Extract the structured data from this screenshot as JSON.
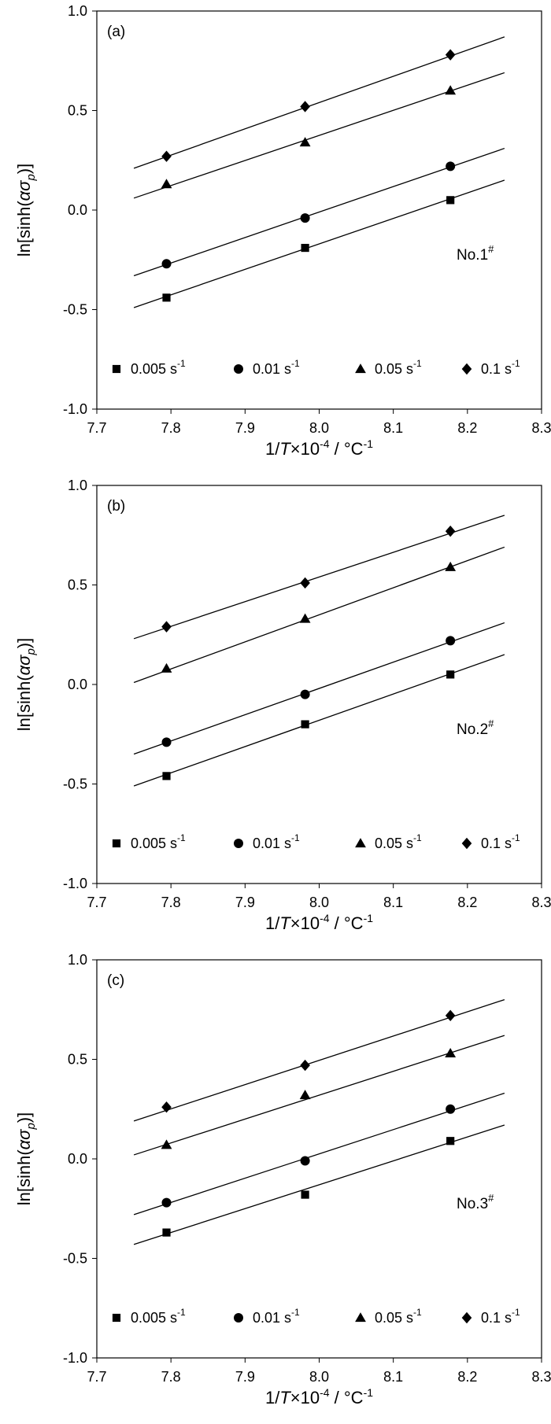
{
  "chart_data": [
    {
      "type": "scatter",
      "panel_label": "(a)",
      "annotation": {
        "base": "No.1",
        "sup": "#"
      },
      "xlabel": {
        "prefix": "1/",
        "italic": "T",
        "mid": "×10",
        "exp": "-4",
        "unit": " / °C",
        "unit_exp": "-1"
      },
      "ylabel": {
        "prefix": "ln[sinh(",
        "alpha": "α",
        "sigma": "σ",
        "sub": "p",
        "suffix": ")]"
      },
      "xlim": [
        7.7,
        8.3
      ],
      "ylim": [
        -1.0,
        1.0
      ],
      "x_ticks": [
        "7.7",
        "7.8",
        "7.9",
        "8.0",
        "8.1",
        "8.2",
        "8.3"
      ],
      "y_ticks": [
        "-1.0",
        "-0.5",
        "0.0",
        "0.5",
        "1.0"
      ],
      "grid": false,
      "legend_position": "bottom",
      "series": [
        {
          "name": "0.005 s",
          "name_exp": "-1",
          "marker": "square",
          "x": [
            7.794,
            7.981,
            8.177
          ],
          "y": [
            -0.44,
            -0.19,
            0.05
          ],
          "fit": {
            "x": [
              7.75,
              8.25
            ],
            "y": [
              -0.49,
              0.15
            ]
          }
        },
        {
          "name": "0.01 s",
          "name_exp": "-1",
          "marker": "circle",
          "x": [
            7.794,
            7.981,
            8.177
          ],
          "y": [
            -0.27,
            -0.04,
            0.22
          ],
          "fit": {
            "x": [
              7.75,
              8.25
            ],
            "y": [
              -0.33,
              0.31
            ]
          }
        },
        {
          "name": "0.05 s",
          "name_exp": "-1",
          "marker": "triangle",
          "x": [
            7.794,
            7.981,
            8.177
          ],
          "y": [
            0.13,
            0.34,
            0.6
          ],
          "fit": {
            "x": [
              7.75,
              8.25
            ],
            "y": [
              0.06,
              0.69
            ]
          }
        },
        {
          "name": "0.1 s",
          "name_exp": "-1",
          "marker": "diamond",
          "x": [
            7.794,
            7.981,
            8.177
          ],
          "y": [
            0.27,
            0.52,
            0.78
          ],
          "fit": {
            "x": [
              7.75,
              8.25
            ],
            "y": [
              0.21,
              0.87
            ]
          }
        }
      ]
    },
    {
      "type": "scatter",
      "panel_label": "(b)",
      "annotation": {
        "base": "No.2",
        "sup": "#"
      },
      "xlabel": {
        "prefix": "1/",
        "italic": "T",
        "mid": "×10",
        "exp": "-4",
        "unit": " / °C",
        "unit_exp": "-1"
      },
      "ylabel": {
        "prefix": "ln[sinh(",
        "alpha": "α",
        "sigma": "σ",
        "sub": "p",
        "suffix": ")]"
      },
      "xlim": [
        7.7,
        8.3
      ],
      "ylim": [
        -1.0,
        1.0
      ],
      "x_ticks": [
        "7.7",
        "7.8",
        "7.9",
        "8.0",
        "8.1",
        "8.2",
        "8.3"
      ],
      "y_ticks": [
        "-1.0",
        "-0.5",
        "0.0",
        "0.5",
        "1.0"
      ],
      "grid": false,
      "legend_position": "bottom",
      "series": [
        {
          "name": "0.005 s",
          "name_exp": "-1",
          "marker": "square",
          "x": [
            7.794,
            7.981,
            8.177
          ],
          "y": [
            -0.46,
            -0.2,
            0.05
          ],
          "fit": {
            "x": [
              7.75,
              8.25
            ],
            "y": [
              -0.51,
              0.15
            ]
          }
        },
        {
          "name": "0.01 s",
          "name_exp": "-1",
          "marker": "circle",
          "x": [
            7.794,
            7.981,
            8.177
          ],
          "y": [
            -0.29,
            -0.05,
            0.22
          ],
          "fit": {
            "x": [
              7.75,
              8.25
            ],
            "y": [
              -0.35,
              0.31
            ]
          }
        },
        {
          "name": "0.05 s",
          "name_exp": "-1",
          "marker": "triangle",
          "x": [
            7.794,
            7.981,
            8.177
          ],
          "y": [
            0.08,
            0.33,
            0.59
          ],
          "fit": {
            "x": [
              7.75,
              8.25
            ],
            "y": [
              0.01,
              0.69
            ]
          }
        },
        {
          "name": "0.1 s",
          "name_exp": "-1",
          "marker": "diamond",
          "x": [
            7.794,
            7.981,
            8.177
          ],
          "y": [
            0.29,
            0.51,
            0.77
          ],
          "fit": {
            "x": [
              7.75,
              8.25
            ],
            "y": [
              0.23,
              0.85
            ]
          }
        }
      ]
    },
    {
      "type": "scatter",
      "panel_label": "(c)",
      "annotation": {
        "base": "No.3",
        "sup": "#"
      },
      "xlabel": {
        "prefix": "1/",
        "italic": "T",
        "mid": "×10",
        "exp": "-4",
        "unit": " / °C",
        "unit_exp": "-1"
      },
      "ylabel": {
        "prefix": "ln[sinh(",
        "alpha": "α",
        "sigma": "σ",
        "sub": "p",
        "suffix": ")]"
      },
      "xlim": [
        7.7,
        8.3
      ],
      "ylim": [
        -1.0,
        1.0
      ],
      "x_ticks": [
        "7.7",
        "7.8",
        "7.9",
        "8.0",
        "8.1",
        "8.2",
        "8.3"
      ],
      "y_ticks": [
        "-1.0",
        "-0.5",
        "0.0",
        "0.5",
        "1.0"
      ],
      "grid": false,
      "legend_position": "bottom",
      "series": [
        {
          "name": "0.005 s",
          "name_exp": "-1",
          "marker": "square",
          "x": [
            7.794,
            7.981,
            8.177
          ],
          "y": [
            -0.37,
            -0.18,
            0.09
          ],
          "fit": {
            "x": [
              7.75,
              8.25
            ],
            "y": [
              -0.43,
              0.17
            ]
          }
        },
        {
          "name": "0.01 s",
          "name_exp": "-1",
          "marker": "circle",
          "x": [
            7.794,
            7.981,
            8.177
          ],
          "y": [
            -0.22,
            -0.01,
            0.25
          ],
          "fit": {
            "x": [
              7.75,
              8.25
            ],
            "y": [
              -0.28,
              0.33
            ]
          }
        },
        {
          "name": "0.05 s",
          "name_exp": "-1",
          "marker": "triangle",
          "x": [
            7.794,
            7.981,
            8.177
          ],
          "y": [
            0.07,
            0.32,
            0.53
          ],
          "fit": {
            "x": [
              7.75,
              8.25
            ],
            "y": [
              0.02,
              0.62
            ]
          }
        },
        {
          "name": "0.1 s",
          "name_exp": "-1",
          "marker": "diamond",
          "x": [
            7.794,
            7.981,
            8.177
          ],
          "y": [
            0.26,
            0.47,
            0.72
          ],
          "fit": {
            "x": [
              7.75,
              8.25
            ],
            "y": [
              0.19,
              0.8
            ]
          }
        }
      ]
    }
  ]
}
